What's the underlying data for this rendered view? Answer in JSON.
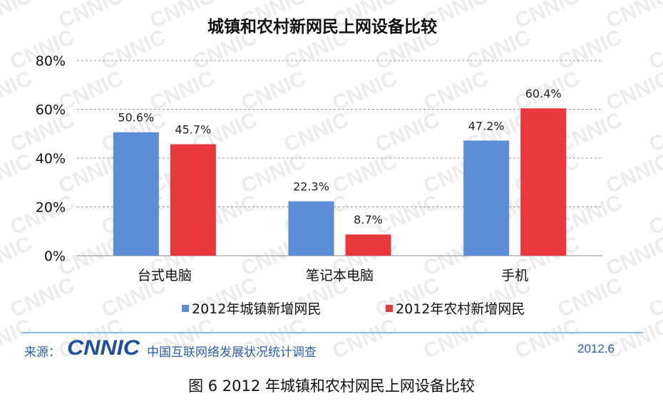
{
  "chart_data": {
    "type": "bar",
    "title": "城镇和农村新网民上网设备比较",
    "categories": [
      "台式电脑",
      "笔记本电脑",
      "手机"
    ],
    "series": [
      {
        "name": "2012年城镇新增网民",
        "values": [
          50.6,
          22.3,
          47.2
        ],
        "labels": [
          "50.6%",
          "22.3%",
          "47.2%"
        ],
        "color": "#5b8ed6"
      },
      {
        "name": "2012年农村新增网民",
        "values": [
          45.7,
          8.7,
          60.4
        ],
        "labels": [
          "45.7%",
          "8.7%",
          "60.4%"
        ],
        "color": "#e8383c"
      }
    ],
    "ylim": [
      0,
      80
    ],
    "yticks": [
      "0%",
      "20%",
      "40%",
      "60%",
      "80%"
    ],
    "ytick_values": [
      0,
      20,
      40,
      60,
      80
    ],
    "grid": true,
    "legend": "bottom"
  },
  "footer": {
    "source_label": "来源：",
    "logo_text": "CNNIC",
    "survey_name": "中国互联网络发展状况统计调查",
    "date": "2012.6"
  },
  "caption": "图 6   2012 年城镇和农村网民上网设备比较",
  "colors": {
    "accent": "#2f5da8",
    "watermark": "#e8e8e8"
  }
}
